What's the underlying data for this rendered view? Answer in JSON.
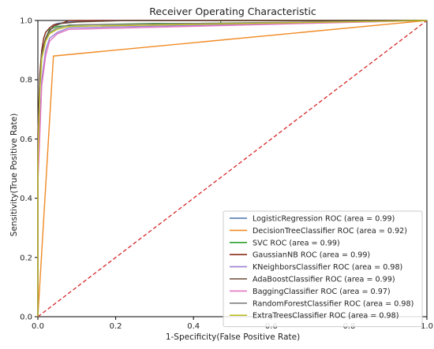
{
  "chart_data": {
    "type": "line",
    "title": "Receiver Operating Characteristic",
    "xlabel": "1-Specificity(False Positive Rate)",
    "ylabel": "Sensitivity(True Positive Rate)",
    "xlim": [
      0.0,
      1.0
    ],
    "ylim": [
      0.0,
      1.0
    ],
    "x_ticks": [
      "0.0",
      "0.2",
      "0.4",
      "0.6",
      "0.8",
      "1.0"
    ],
    "y_ticks": [
      "0.0",
      "0.2",
      "0.4",
      "0.6",
      "0.8",
      "1.0"
    ],
    "grid": false,
    "legend_position": "bottom-right",
    "diagonal": {
      "color": "#d62728",
      "style": "dashed",
      "x": [
        0,
        1
      ],
      "y": [
        0,
        1
      ]
    },
    "series": [
      {
        "name": "LogisticRegression ROC (area = 0.99)",
        "color": "#4c72b0",
        "x": [
          0,
          0.0,
          0.005,
          0.01,
          0.015,
          0.02,
          0.03,
          0.04,
          0.05,
          0.08,
          0.15,
          1.0
        ],
        "y": [
          0,
          0.6,
          0.8,
          0.9,
          0.94,
          0.96,
          0.975,
          0.985,
          0.99,
          0.995,
          1.0,
          1.0
        ]
      },
      {
        "name": "DecisionTreeClassifier ROC (area = 0.92)",
        "color": "#f08a24",
        "x": [
          0,
          0.04,
          1.0
        ],
        "y": [
          0,
          0.88,
          1.0
        ]
      },
      {
        "name": "SVC ROC (area = 0.99)",
        "color": "#2ca02c",
        "x": [
          0,
          0.0,
          0.005,
          0.01,
          0.02,
          0.03,
          0.05,
          0.1,
          0.3,
          0.47,
          0.47,
          1.0
        ],
        "y": [
          0,
          0.55,
          0.78,
          0.88,
          0.94,
          0.97,
          0.98,
          0.985,
          0.99,
          0.99,
          1.0,
          1.0
        ]
      },
      {
        "name": "GaussianNB ROC (area = 0.99)",
        "color": "#8c2d1a",
        "x": [
          0,
          0.0,
          0.005,
          0.01,
          0.015,
          0.02,
          0.03,
          0.04,
          0.06,
          0.08,
          1.0
        ],
        "y": [
          0,
          0.62,
          0.82,
          0.9,
          0.94,
          0.96,
          0.975,
          0.985,
          0.99,
          1.0,
          1.0
        ]
      },
      {
        "name": "KNeighborsClassifier ROC (area = 0.98)",
        "color": "#9a7fd1",
        "x": [
          0,
          0.0,
          0.01,
          0.02,
          0.03,
          0.05,
          0.08,
          1.0
        ],
        "y": [
          0,
          0.5,
          0.8,
          0.9,
          0.94,
          0.96,
          0.975,
          1.0
        ]
      },
      {
        "name": "AdaBoostClassifier ROC (area = 0.99)",
        "color": "#6b4a3a",
        "x": [
          0,
          0.0,
          0.005,
          0.01,
          0.02,
          0.03,
          0.04,
          0.06,
          0.1,
          0.23,
          1.0
        ],
        "y": [
          0,
          0.58,
          0.8,
          0.89,
          0.94,
          0.965,
          0.98,
          0.99,
          0.995,
          1.0,
          1.0
        ]
      },
      {
        "name": "BaggingClassifier ROC (area = 0.97)",
        "color": "#e377c2",
        "x": [
          0,
          0.0,
          0.01,
          0.02,
          0.03,
          0.05,
          0.08,
          1.0
        ],
        "y": [
          0,
          0.45,
          0.78,
          0.88,
          0.93,
          0.955,
          0.97,
          1.0
        ]
      },
      {
        "name": "RandomForestClassifier ROC (area = 0.98)",
        "color": "#7f7f7f",
        "x": [
          0,
          0.0,
          0.005,
          0.01,
          0.02,
          0.03,
          0.05,
          0.08,
          1.0
        ],
        "y": [
          0,
          0.55,
          0.78,
          0.88,
          0.93,
          0.96,
          0.975,
          0.985,
          1.0
        ]
      },
      {
        "name": "ExtraTreesClassifier ROC (area = 0.98)",
        "color": "#bcbd22",
        "x": [
          0,
          0.0,
          0.005,
          0.01,
          0.02,
          0.03,
          0.05,
          0.08,
          1.0
        ],
        "y": [
          0,
          0.52,
          0.76,
          0.87,
          0.93,
          0.955,
          0.97,
          0.98,
          1.0
        ]
      }
    ]
  }
}
